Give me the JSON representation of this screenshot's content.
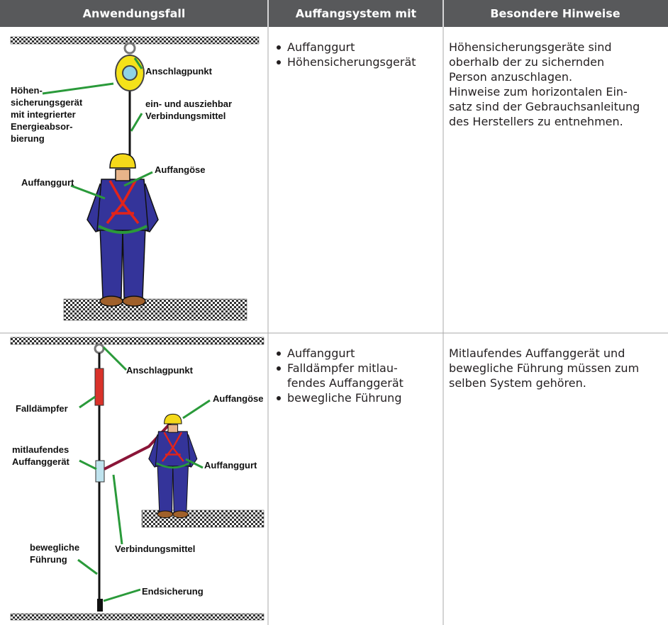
{
  "table": {
    "headers": [
      "Anwendungsfall",
      "Auffangsystem mit",
      "Besondere Hinweise"
    ],
    "rows": [
      {
        "figure_labels": [
          "Anschlagpunkt",
          "Höhen-",
          "sicherungsgerät",
          "mit integrierter",
          "Energieabsor-",
          "bierung",
          "ein- und ausziehbar",
          "Verbindungsmittel",
          "Auffangöse",
          "Auffanggurt"
        ],
        "system": [
          [
            "Auffanggurt"
          ],
          [
            "Höhensicherungsgerät"
          ]
        ],
        "notes": [
          "Höhensicherungsgeräte sind",
          "oberhalb der zu sichernden",
          "Person anzuschlagen.",
          "Hinweise zum horizontalen Ein-",
          "satz sind der Gebrauchsanleitung",
          "des Herstellers zu entnehmen."
        ]
      },
      {
        "figure_labels": [
          "Anschlagpunkt",
          "Falldämpfer",
          "mitlaufendes",
          "Auffanggerät",
          "Auffangöse",
          "Auffanggurt",
          "Verbindungsmittel",
          "bewegliche",
          "Führung",
          "Endsicherung"
        ],
        "system": [
          [
            "Auffanggurt"
          ],
          [
            "Falldämpfer mitlau-",
            "fendes Auffanggerät"
          ],
          [
            "bewegliche Führung"
          ]
        ],
        "notes": [
          "Mitlaufendes Auffanggerät und",
          "bewegliche Führung müssen zum",
          "selben System gehören."
        ]
      }
    ]
  }
}
